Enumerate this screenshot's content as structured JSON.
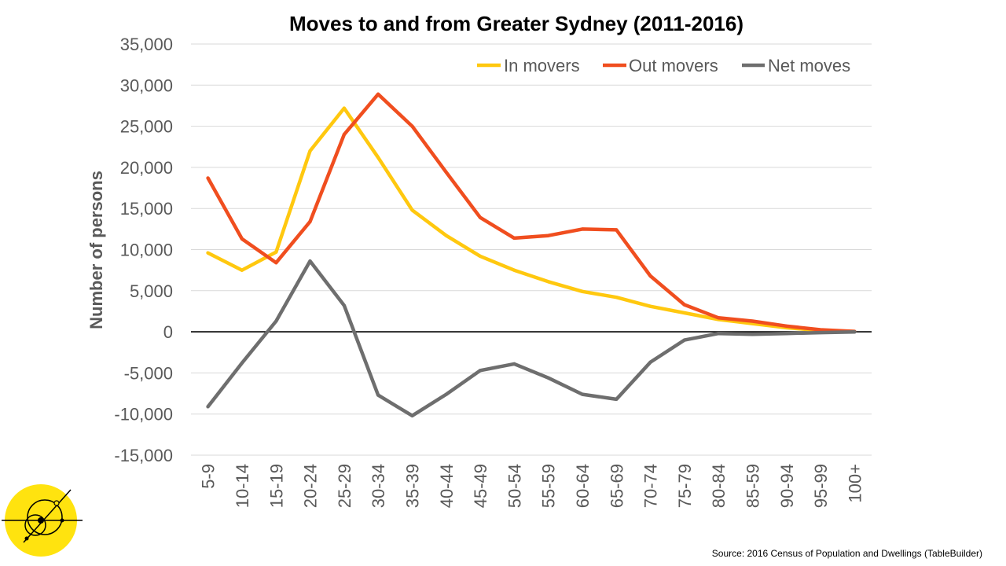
{
  "chart_data": {
    "type": "line",
    "title": "Moves to and from Greater Sydney (2011-2016)",
    "xlabel": "",
    "ylabel": "Number of persons",
    "ylim": [
      -15000,
      35000
    ],
    "yticks": [
      35000,
      30000,
      25000,
      20000,
      15000,
      10000,
      5000,
      0,
      -5000,
      -10000,
      -15000
    ],
    "ytick_labels": [
      "35,000",
      "30,000",
      "25,000",
      "20,000",
      "15,000",
      "10,000",
      "5,000",
      "0",
      "-5,000",
      "-10,000",
      "-15,000"
    ],
    "categories": [
      "5-9",
      "10-14",
      "15-19",
      "20-24",
      "25-29",
      "30-34",
      "35-39",
      "40-44",
      "45-49",
      "50-54",
      "55-59",
      "60-64",
      "65-69",
      "70-74",
      "75-79",
      "80-84",
      "85-59",
      "90-94",
      "95-99",
      "100+"
    ],
    "series": [
      {
        "name": "In movers",
        "color": "#FFC80F",
        "values": [
          9600,
          7500,
          9700,
          22000,
          27200,
          21200,
          14800,
          11700,
          9200,
          7500,
          6100,
          4900,
          4200,
          3100,
          2300,
          1500,
          1000,
          500,
          150,
          30
        ]
      },
      {
        "name": "Out movers",
        "color": "#F04E1F",
        "values": [
          18700,
          11300,
          8400,
          13400,
          24000,
          28900,
          25000,
          19400,
          13900,
          11400,
          11700,
          12500,
          12400,
          6800,
          3300,
          1700,
          1300,
          700,
          250,
          50
        ]
      },
      {
        "name": "Net moves",
        "color": "#6E6E6E",
        "values": [
          -9100,
          -3800,
          1300,
          8600,
          3200,
          -7700,
          -10200,
          -7600,
          -4700,
          -3900,
          -5600,
          -7600,
          -8200,
          -3700,
          -1000,
          -200,
          -300,
          -200,
          -100,
          -20
        ]
      }
    ],
    "grid": true,
    "legend": "top-right"
  },
  "source": "Source: 2016 Census of Population and Dwellings (TableBuilder)",
  "logo": {
    "icon": "compass-circle-logo-icon",
    "color": "#FFE30F"
  }
}
